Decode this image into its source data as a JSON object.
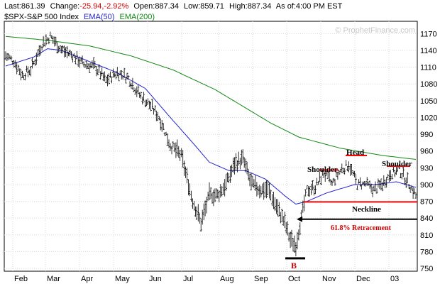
{
  "header": {
    "last_label": "Last:",
    "last_value": "861.39",
    "change_label": "Change:",
    "change_value": "-25.94,-2.92%",
    "open_label": "Open:",
    "open_value": "887.34",
    "low_label": "Low:",
    "low_value": "859.71",
    "high_label": "High:",
    "high_value": "887.34",
    "asof_label": "As of:",
    "asof_value": "4:00 PM EST",
    "colors": {
      "text": "#000000",
      "change": "#cc0000"
    }
  },
  "legend": {
    "price": "$SPX-S&P 500 Index",
    "ema50": "EMA(50)",
    "ema200": "EMA(200)",
    "colors": {
      "price": "#000000",
      "ema50": "#2222cc",
      "ema200": "#118811"
    }
  },
  "watermark": "© ProphetFinance.com",
  "annotations": {
    "shoulder_left": "Shoulder",
    "head": "Head",
    "shoulder_right": "Shoulder",
    "neckline": "Neckline",
    "retracement": "61.8% Retracement",
    "bottom": "B",
    "colors": {
      "neckline": "#ff0000",
      "retracement_text": "#cc0000",
      "line": "#000000"
    }
  },
  "chart_data": {
    "type": "ohlc",
    "y_ticks": [
      750,
      780,
      810,
      840,
      870,
      900,
      930,
      960,
      990,
      1020,
      1050,
      1080,
      1110,
      1140,
      1170
    ],
    "ylim": [
      745,
      1192
    ],
    "x_labels": [
      "Feb",
      "Mar",
      "Apr",
      "May",
      "Jun",
      "Jul",
      "Aug",
      "Sep",
      "Oct",
      "Nov",
      "Dec",
      "03"
    ],
    "grid": true,
    "neckline_level": 869,
    "retracement_level": 838,
    "bottom_level": 768,
    "price_anchors": [
      [
        0,
        1130
      ],
      [
        6,
        1120
      ],
      [
        12,
        1095
      ],
      [
        18,
        1105
      ],
      [
        26,
        1150
      ],
      [
        32,
        1165
      ],
      [
        40,
        1140
      ],
      [
        48,
        1130
      ],
      [
        56,
        1115
      ],
      [
        64,
        1110
      ],
      [
        72,
        1085
      ],
      [
        80,
        1100
      ],
      [
        88,
        1090
      ],
      [
        96,
        1060
      ],
      [
        104,
        1040
      ],
      [
        110,
        1020
      ],
      [
        118,
        970
      ],
      [
        126,
        950
      ],
      [
        134,
        870
      ],
      [
        140,
        830
      ],
      [
        146,
        880
      ],
      [
        152,
        880
      ],
      [
        158,
        900
      ],
      [
        164,
        935
      ],
      [
        170,
        945
      ],
      [
        176,
        900
      ],
      [
        182,
        890
      ],
      [
        188,
        890
      ],
      [
        194,
        860
      ],
      [
        200,
        830
      ],
      [
        204,
        800
      ],
      [
        208,
        790
      ],
      [
        212,
        840
      ],
      [
        216,
        890
      ],
      [
        222,
        895
      ],
      [
        228,
        920
      ],
      [
        234,
        900
      ],
      [
        240,
        925
      ],
      [
        246,
        935
      ],
      [
        252,
        900
      ],
      [
        258,
        900
      ],
      [
        264,
        890
      ],
      [
        270,
        900
      ],
      [
        276,
        920
      ],
      [
        282,
        925
      ],
      [
        288,
        905
      ],
      [
        294,
        880
      ]
    ],
    "ema50_anchors": [
      [
        0,
        1112
      ],
      [
        20,
        1128
      ],
      [
        30,
        1143
      ],
      [
        40,
        1140
      ],
      [
        60,
        1120
      ],
      [
        80,
        1100
      ],
      [
        100,
        1072
      ],
      [
        118,
        1020
      ],
      [
        134,
        975
      ],
      [
        146,
        940
      ],
      [
        160,
        925
      ],
      [
        172,
        925
      ],
      [
        186,
        910
      ],
      [
        200,
        880
      ],
      [
        208,
        865
      ],
      [
        216,
        870
      ],
      [
        230,
        885
      ],
      [
        250,
        900
      ],
      [
        265,
        900
      ],
      [
        280,
        905
      ],
      [
        294,
        895
      ]
    ],
    "ema200_anchors": [
      [
        0,
        1165
      ],
      [
        30,
        1158
      ],
      [
        60,
        1148
      ],
      [
        90,
        1130
      ],
      [
        120,
        1105
      ],
      [
        150,
        1070
      ],
      [
        170,
        1040
      ],
      [
        190,
        1010
      ],
      [
        210,
        985
      ],
      [
        240,
        965
      ],
      [
        270,
        952
      ],
      [
        294,
        945
      ]
    ]
  }
}
